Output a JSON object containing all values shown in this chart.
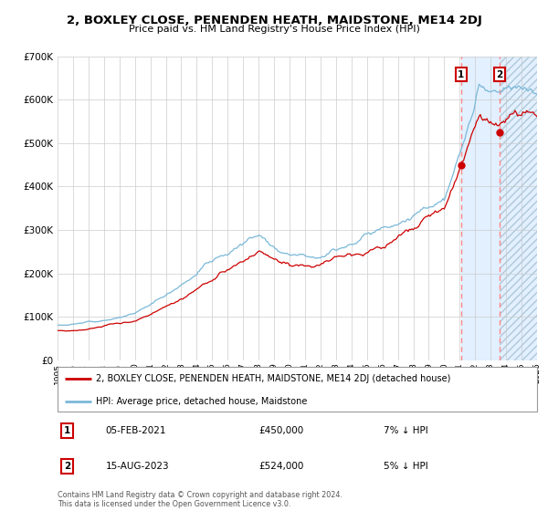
{
  "title": "2, BOXLEY CLOSE, PENENDEN HEATH, MAIDSTONE, ME14 2DJ",
  "subtitle": "Price paid vs. HM Land Registry's House Price Index (HPI)",
  "legend_line1": "2, BOXLEY CLOSE, PENENDEN HEATH, MAIDSTONE, ME14 2DJ (detached house)",
  "legend_line2": "HPI: Average price, detached house, Maidstone",
  "annotation1_date": "05-FEB-2021",
  "annotation1_price": "£450,000",
  "annotation1_hpi": "7% ↓ HPI",
  "annotation2_date": "15-AUG-2023",
  "annotation2_price": "£524,000",
  "annotation2_hpi": "5% ↓ HPI",
  "footer": "Contains HM Land Registry data © Crown copyright and database right 2024.\nThis data is licensed under the Open Government Licence v3.0.",
  "year_start": 1995,
  "year_end": 2026,
  "ylim_min": 0,
  "ylim_max": 700000,
  "yticks": [
    0,
    100000,
    200000,
    300000,
    400000,
    500000,
    600000,
    700000
  ],
  "ytick_labels": [
    "£0",
    "£100K",
    "£200K",
    "£300K",
    "£400K",
    "£500K",
    "£600K",
    "£700K"
  ],
  "hpi_color": "#7ab8d9",
  "price_color": "#cc0000",
  "bg_color": "#ffffff",
  "grid_color": "#cccccc",
  "shade_color": "#ddeeff",
  "dashed_line_color": "#ff8888",
  "annotation_box_color": "#cc0000",
  "sale1_year": 2021.083,
  "sale1_price": 450000,
  "sale2_year": 2023.583,
  "sale2_price": 524000
}
